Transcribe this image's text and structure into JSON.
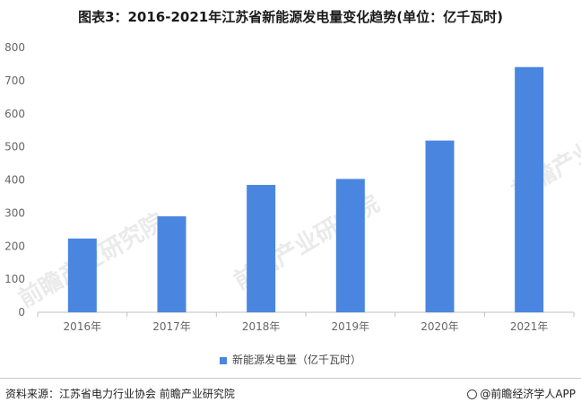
{
  "title": "图表3：2016-2021年江苏省新能源发电量变化趋势(单位：亿千瓦时)",
  "legend_label": "新能源发电量（亿千瓦时）",
  "source": "资料来源：江苏省电力行业协会 前瞻产业研究院",
  "brand": "@前瞻经济学人APP",
  "watermark": "前瞻产业研究院",
  "colors": {
    "bar": "#4a86e0",
    "axis": "#bfbfbf"
  },
  "chart_data": {
    "type": "bar",
    "categories": [
      "2016年",
      "2017年",
      "2018年",
      "2019年",
      "2020年",
      "2021年"
    ],
    "series": [
      {
        "name": "新能源发电量（亿千瓦时）",
        "values": [
          223,
          290,
          385,
          403,
          519,
          741
        ]
      }
    ],
    "yticks": [
      0,
      100,
      200,
      300,
      400,
      500,
      600,
      700,
      800
    ],
    "ylim": [
      0,
      800
    ],
    "grid": false,
    "legend_position": "bottom"
  }
}
